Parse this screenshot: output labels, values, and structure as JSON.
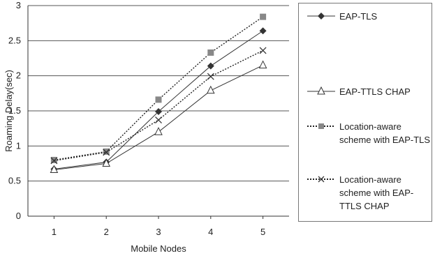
{
  "chart_data": {
    "type": "line",
    "xlabel": "Mobile Nodes",
    "ylabel": "Roaming Delay(sec)",
    "x": [
      1,
      2,
      3,
      4,
      5
    ],
    "xlim": [
      0.5,
      5.5
    ],
    "ylim": [
      0,
      3
    ],
    "yticks": [
      "0",
      "0.5",
      "1",
      "1.5",
      "2",
      "2.5",
      "3"
    ],
    "xticks": [
      "1",
      "2",
      "3",
      "4",
      "5"
    ],
    "grid": "horizontal",
    "legend_position": "right",
    "series": [
      {
        "name": "EAP-TLS",
        "values": [
          0.67,
          0.77,
          1.49,
          2.14,
          2.64
        ],
        "marker": "diamond",
        "line": "solid",
        "color": "#333333"
      },
      {
        "name": "EAP-TTLS CHAP",
        "values": [
          0.66,
          0.75,
          1.2,
          1.79,
          2.15
        ],
        "marker": "triangle",
        "line": "solid",
        "color": "#333333"
      },
      {
        "name": "Location-aware scheme with EAP-TLS",
        "values": [
          0.8,
          0.92,
          1.66,
          2.33,
          2.84
        ],
        "marker": "square",
        "line": "dotted",
        "color": "#888888"
      },
      {
        "name": "Location-aware scheme with EAP-TTLS CHAP",
        "values": [
          0.79,
          0.91,
          1.37,
          1.99,
          2.36
        ],
        "marker": "x",
        "line": "dotted",
        "color": "#333333"
      }
    ]
  }
}
